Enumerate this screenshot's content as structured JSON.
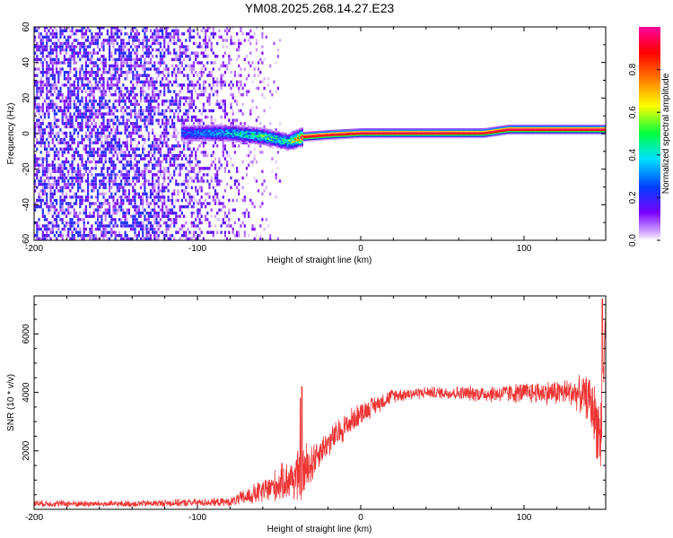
{
  "title": "YM08.2025.268.14.27.E23",
  "chart_data": [
    {
      "type": "heatmap",
      "xlabel": "Height of straight line (km)",
      "ylabel": "Frequency (Hz)",
      "xlim": [
        -200,
        150
      ],
      "ylim": [
        -60,
        60
      ],
      "xticks": [
        -200,
        -100,
        0,
        100
      ],
      "yticks": [
        -60,
        -40,
        -20,
        0,
        20,
        40,
        60
      ],
      "colorbar": {
        "label": "Normalized spectral amplitude",
        "range": [
          0,
          1
        ],
        "ticks": [
          0.0,
          0.2,
          0.4,
          0.6,
          0.8
        ],
        "tick_labels": [
          "0.0",
          "0.2",
          "0.4",
          "0.6",
          "0.8"
        ],
        "colors": [
          "#ffffff",
          "#7b00ff",
          "#0040ff",
          "#00e0ff",
          "#00ff40",
          "#ffff00",
          "#ff8000",
          "#ff0000",
          "#ff00a0"
        ]
      },
      "ridge": [
        {
          "x": -110,
          "y": 0,
          "v": 0.25
        },
        {
          "x": -80,
          "y": 0,
          "v": 0.35
        },
        {
          "x": -60,
          "y": -2,
          "v": 0.45
        },
        {
          "x": -45,
          "y": -5,
          "v": 0.4
        },
        {
          "x": -35,
          "y": -2,
          "v": 0.95
        },
        {
          "x": -20,
          "y": -1,
          "v": 0.95
        },
        {
          "x": 0,
          "y": 0,
          "v": 0.98
        },
        {
          "x": 50,
          "y": 0,
          "v": 0.98
        },
        {
          "x": 75,
          "y": 0,
          "v": 0.95
        },
        {
          "x": 90,
          "y": 2,
          "v": 0.98
        },
        {
          "x": 150,
          "y": 2,
          "v": 0.98
        }
      ],
      "noise_region": {
        "x_from": -200,
        "x_to": -70,
        "y_from": -60,
        "y_to": 60,
        "level": 0.2
      }
    },
    {
      "type": "line",
      "xlabel": "Height of straight line (km)",
      "ylabel": "SNR (10 * v/v)",
      "xlim": [
        -200,
        150
      ],
      "ylim": [
        0,
        7300
      ],
      "xticks": [
        -200,
        -100,
        0,
        100
      ],
      "yticks": [
        2000,
        4000,
        6000
      ],
      "color": "#ee3333",
      "envelope": [
        {
          "x": -200,
          "y": 200,
          "spread": 120
        },
        {
          "x": -150,
          "y": 180,
          "spread": 110
        },
        {
          "x": -80,
          "y": 250,
          "spread": 150
        },
        {
          "x": -60,
          "y": 600,
          "spread": 450
        },
        {
          "x": -45,
          "y": 1000,
          "spread": 700
        },
        {
          "x": -35,
          "y": 1200,
          "spread": 1100
        },
        {
          "x": -25,
          "y": 2000,
          "spread": 500
        },
        {
          "x": -10,
          "y": 2800,
          "spread": 500
        },
        {
          "x": 0,
          "y": 3300,
          "spread": 400
        },
        {
          "x": 20,
          "y": 3900,
          "spread": 250
        },
        {
          "x": 40,
          "y": 4000,
          "spread": 200
        },
        {
          "x": 80,
          "y": 3950,
          "spread": 300
        },
        {
          "x": 110,
          "y": 4000,
          "spread": 400
        },
        {
          "x": 130,
          "y": 4000,
          "spread": 500
        },
        {
          "x": 140,
          "y": 3800,
          "spread": 800
        },
        {
          "x": 147,
          "y": 2500,
          "spread": 1500
        },
        {
          "x": 150,
          "y": 6500,
          "spread": 800
        }
      ],
      "spikes": [
        {
          "x": -37,
          "y": 3800
        },
        {
          "x": -36,
          "y": 4200
        },
        {
          "x": 148,
          "y": 7200
        }
      ]
    }
  ]
}
